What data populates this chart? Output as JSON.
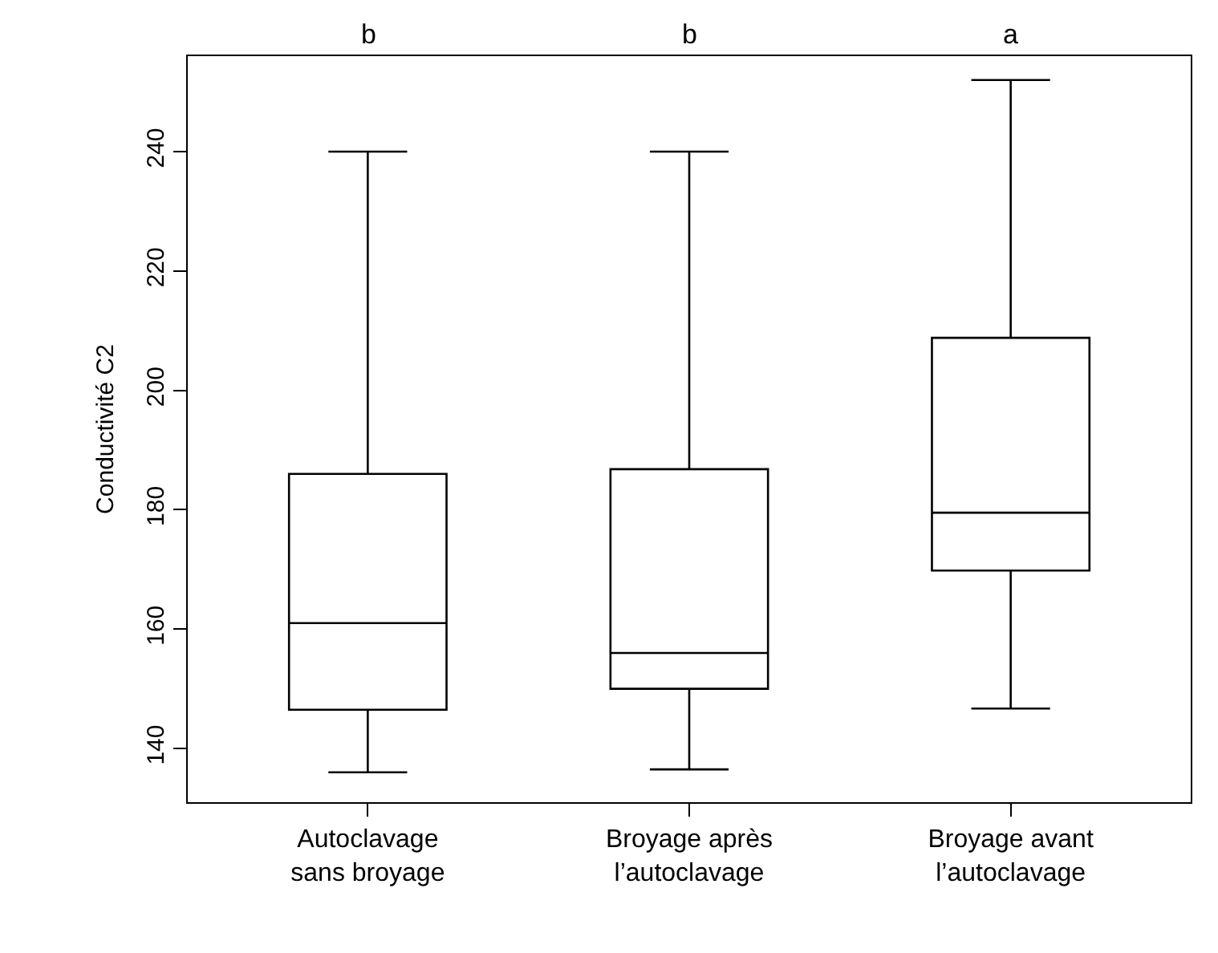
{
  "chart_data": {
    "type": "box",
    "ylabel": "Conductivité C2",
    "categories": [
      "Autoclavage\nsans broyage",
      "Broyage après\nl’autoclavage",
      "Broyage avant\nl’autoclavage"
    ],
    "boxes": [
      {
        "low": 136,
        "q1": 146.5,
        "median": 161,
        "q3": 186,
        "high": 240
      },
      {
        "low": 136.5,
        "q1": 150,
        "median": 156,
        "q3": 186.8,
        "high": 240
      },
      {
        "low": 146.7,
        "q1": 169.8,
        "median": 179.5,
        "q3": 208.8,
        "high": 252
      }
    ],
    "color": "#000000",
    "ylim": [
      131,
      256
    ],
    "yticks": [
      140,
      160,
      180,
      200,
      220,
      240
    ],
    "grid": false,
    "annotations": [
      "b",
      "b",
      "a"
    ]
  }
}
